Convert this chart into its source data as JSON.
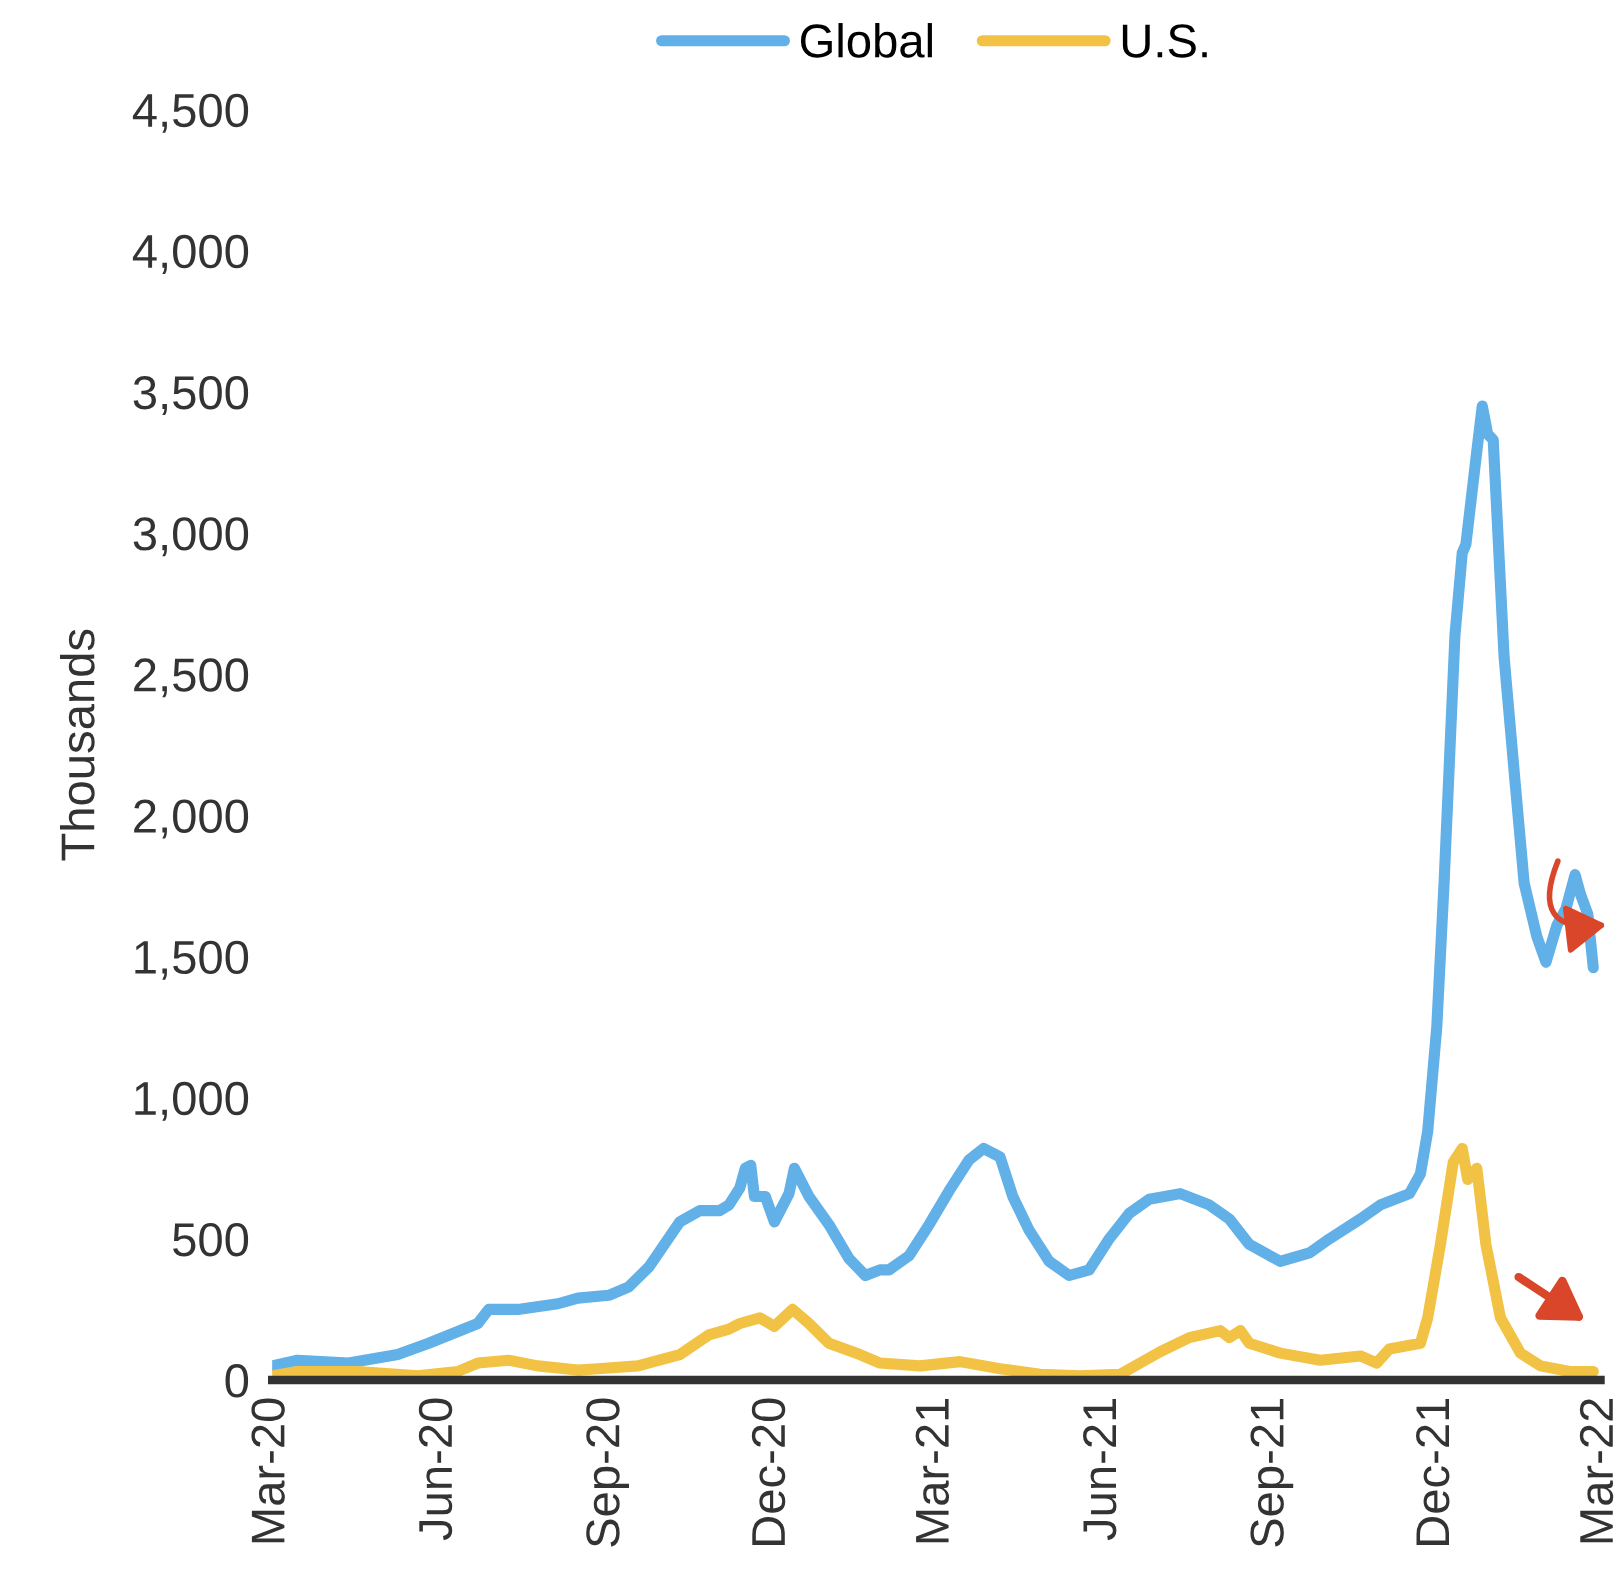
{
  "chart_data": {
    "type": "line",
    "ylabel": "Thousands",
    "legend": "top",
    "grid": false,
    "marker": "none",
    "line_style": "solid",
    "xlim": [
      "2020-03-01",
      "2022-03-01"
    ],
    "xticks": [
      {
        "value": "2020-03-01",
        "label": "Mar-20"
      },
      {
        "value": "2020-06-01",
        "label": "Jun-20"
      },
      {
        "value": "2020-09-01",
        "label": "Sep-20"
      },
      {
        "value": "2020-12-01",
        "label": "Dec-20"
      },
      {
        "value": "2021-03-01",
        "label": "Mar-21"
      },
      {
        "value": "2021-06-01",
        "label": "Jun-21"
      },
      {
        "value": "2021-09-01",
        "label": "Sep-21"
      },
      {
        "value": "2021-12-01",
        "label": "Dec-21"
      },
      {
        "value": "2022-03-01",
        "label": "Mar-22"
      }
    ],
    "ylim": [
      0,
      4500
    ],
    "yticks": [
      {
        "value": 0,
        "label": "0"
      },
      {
        "value": 500,
        "label": "500"
      },
      {
        "value": 1000,
        "label": "1,000"
      },
      {
        "value": 1500,
        "label": "1,500"
      },
      {
        "value": 2000,
        "label": "2,000"
      },
      {
        "value": 2500,
        "label": "2,500"
      },
      {
        "value": 3000,
        "label": "3,000"
      },
      {
        "value": 3500,
        "label": "3,500"
      },
      {
        "value": 4000,
        "label": "4,000"
      },
      {
        "value": 4500,
        "label": "4,500"
      }
    ],
    "series": [
      {
        "name": "Global",
        "color": "#62b0e8",
        "x": [
          "2020-03-01",
          "2020-03-15",
          "2020-04-12",
          "2020-05-09",
          "2020-05-26",
          "2020-06-22",
          "2020-06-28",
          "2020-07-14",
          "2020-08-05",
          "2020-08-16",
          "2020-09-02",
          "2020-09-13",
          "2020-09-24",
          "2020-10-11",
          "2020-10-22",
          "2020-11-02",
          "2020-11-07",
          "2020-11-13",
          "2020-11-16",
          "2020-11-19",
          "2020-11-21",
          "2020-11-27",
          "2020-12-02",
          "2020-12-10",
          "2020-12-13",
          "2020-12-21",
          "2021-01-01",
          "2021-01-12",
          "2021-01-21",
          "2021-01-29",
          "2021-02-03",
          "2021-02-14",
          "2021-02-25",
          "2021-03-08",
          "2021-03-19",
          "2021-03-27",
          "2021-04-05",
          "2021-04-12",
          "2021-04-21",
          "2021-05-02",
          "2021-05-13",
          "2021-05-24",
          "2021-06-04",
          "2021-06-15",
          "2021-06-26",
          "2021-07-13",
          "2021-07-29",
          "2021-08-09",
          "2021-08-20",
          "2021-09-06",
          "2021-09-22",
          "2021-10-03",
          "2021-10-20",
          "2021-10-31",
          "2021-11-16",
          "2021-11-22",
          "2021-11-26",
          "2021-12-01",
          "2021-12-05",
          "2021-12-11",
          "2021-12-15",
          "2021-12-17",
          "2021-12-23",
          "2021-12-26",
          "2021-12-29",
          "2022-01-01",
          "2022-01-07",
          "2022-01-13",
          "2022-01-18",
          "2022-01-25",
          "2022-01-30",
          "2022-02-05",
          "2022-02-10",
          "2022-02-15",
          "2022-02-18",
          "2022-02-22",
          "2022-02-25"
        ],
        "values": [
          50,
          70,
          60,
          90,
          130,
          200,
          250,
          250,
          270,
          290,
          300,
          330,
          400,
          560,
          600,
          600,
          620,
          680,
          750,
          760,
          650,
          650,
          560,
          660,
          750,
          650,
          550,
          430,
          370,
          390,
          390,
          440,
          550,
          670,
          780,
          820,
          790,
          650,
          530,
          420,
          370,
          390,
          500,
          590,
          640,
          660,
          620,
          570,
          480,
          420,
          450,
          500,
          570,
          620,
          660,
          730,
          880,
          1250,
          1760,
          2640,
          2930,
          2960,
          3290,
          3450,
          3350,
          3330,
          2560,
          2120,
          1760,
          1570,
          1480,
          1610,
          1670,
          1790,
          1720,
          1650,
          1460
        ]
      },
      {
        "name": "U.S.",
        "color": "#f2c244",
        "x": [
          "2020-03-01",
          "2020-03-15",
          "2020-04-17",
          "2020-05-20",
          "2020-06-11",
          "2020-06-22",
          "2020-07-09",
          "2020-07-25",
          "2020-08-16",
          "2020-08-27",
          "2020-09-18",
          "2020-10-11",
          "2020-10-27",
          "2020-11-07",
          "2020-11-13",
          "2020-11-24",
          "2020-12-02",
          "2020-12-12",
          "2020-12-21",
          "2021-01-01",
          "2021-01-18",
          "2021-01-29",
          "2021-02-20",
          "2021-03-14",
          "2021-04-05",
          "2021-04-27",
          "2021-05-19",
          "2021-06-10",
          "2021-06-21",
          "2021-07-02",
          "2021-07-18",
          "2021-08-04",
          "2021-08-09",
          "2021-08-15",
          "2021-08-20",
          "2021-09-06",
          "2021-09-28",
          "2021-10-20",
          "2021-10-29",
          "2021-11-05",
          "2021-11-22",
          "2021-11-26",
          "2021-12-03",
          "2021-12-10",
          "2021-12-15",
          "2021-12-18",
          "2021-12-23",
          "2021-12-28",
          "2022-01-05",
          "2022-01-16",
          "2022-01-27",
          "2022-02-12",
          "2022-02-25"
        ],
        "values": [
          15,
          30,
          30,
          15,
          30,
          60,
          70,
          50,
          35,
          40,
          50,
          90,
          160,
          180,
          200,
          220,
          190,
          250,
          200,
          130,
          90,
          60,
          50,
          65,
          40,
          20,
          15,
          20,
          60,
          100,
          150,
          175,
          150,
          175,
          130,
          95,
          70,
          85,
          60,
          110,
          130,
          220,
          480,
          770,
          820,
          710,
          750,
          480,
          220,
          95,
          50,
          30,
          30
        ]
      }
    ]
  }
}
